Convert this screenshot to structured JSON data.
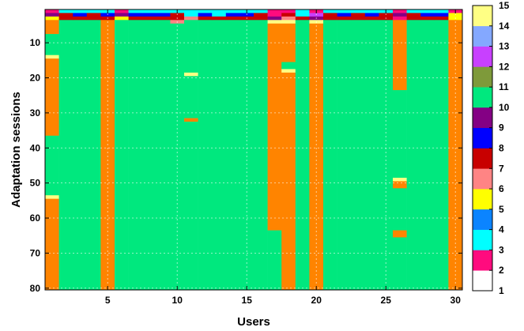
{
  "chart_data": {
    "type": "heatmap",
    "xlabel": "Users",
    "ylabel": "Adaptation sessions",
    "x_range": [
      1,
      30
    ],
    "y_range": [
      1,
      80
    ],
    "y_inverted": true,
    "x_ticks": [
      "5",
      "10",
      "15",
      "20",
      "25",
      "30"
    ],
    "y_ticks": [
      "10",
      "20",
      "30",
      "40",
      "50",
      "60",
      "70",
      "80"
    ],
    "grid": true,
    "colorbar": {
      "placement": "right",
      "range": [
        1,
        15
      ],
      "tick_labels": [
        "1",
        "2",
        "3",
        "4",
        "5",
        "6",
        "7",
        "8",
        "9",
        "10",
        "11",
        "12",
        "13",
        "14",
        "15"
      ],
      "levels": [
        {
          "value": 1,
          "color": "#ffffff"
        },
        {
          "value": 2,
          "color": "#ff0b7e"
        },
        {
          "value": 3,
          "color": "#00ffff"
        },
        {
          "value": 4,
          "color": "#0b84ff"
        },
        {
          "value": 5,
          "color": "#ffff00"
        },
        {
          "value": 6,
          "color": "#ff8484"
        },
        {
          "value": 7,
          "color": "#c80000"
        },
        {
          "value": 8,
          "color": "#0000ff"
        },
        {
          "value": 9,
          "color": "#840084"
        },
        {
          "value": 10,
          "color": "#00e87e"
        },
        {
          "value": 11,
          "color": "#7e9a3a"
        },
        {
          "value": 12,
          "color": "#c840ff"
        },
        {
          "value": 13,
          "color": "#84a8ff"
        },
        {
          "value": 14,
          "color": "#ffff84"
        },
        {
          "value": 15,
          "color": "#ff8400"
        }
      ]
    },
    "header_rows": [
      [
        2,
        3,
        3,
        3,
        3,
        2,
        3,
        3,
        3,
        3,
        3,
        3,
        3,
        3,
        3,
        3,
        2,
        2,
        3,
        2,
        3,
        3,
        3,
        3,
        3,
        2,
        3,
        3,
        3,
        2
      ],
      [
        9,
        7,
        8,
        7,
        8,
        9,
        8,
        8,
        8,
        7,
        3,
        8,
        3,
        8,
        8,
        7,
        2,
        7,
        3,
        12,
        7,
        8,
        7,
        8,
        7,
        9,
        7,
        8,
        8,
        5
      ],
      [
        5,
        7,
        7,
        7,
        7,
        5,
        7,
        7,
        7,
        7,
        6,
        7,
        7,
        7,
        7,
        7,
        9,
        6,
        7,
        9,
        7,
        7,
        7,
        7,
        7,
        2,
        7,
        7,
        7,
        5
      ]
    ],
    "column_defaults": [
      15,
      10,
      10,
      10,
      15,
      10,
      10,
      10,
      10,
      10,
      10,
      10,
      10,
      10,
      10,
      10,
      15,
      15,
      10,
      15,
      10,
      10,
      10,
      10,
      10,
      15,
      10,
      10,
      10,
      15
    ],
    "segments": [
      {
        "user": 1,
        "from": 4,
        "to": 7,
        "value": 15
      },
      {
        "user": 1,
        "from": 8,
        "to": 13,
        "value": 10
      },
      {
        "user": 1,
        "from": 14,
        "to": 14,
        "value": 14
      },
      {
        "user": 1,
        "from": 15,
        "to": 36,
        "value": 15
      },
      {
        "user": 1,
        "from": 37,
        "to": 53,
        "value": 10
      },
      {
        "user": 1,
        "from": 54,
        "to": 54,
        "value": 14
      },
      {
        "user": 10,
        "from": 4,
        "to": 4,
        "value": 6
      },
      {
        "user": 11,
        "from": 19,
        "to": 19,
        "value": 14
      },
      {
        "user": 11,
        "from": 32,
        "to": 32,
        "value": 15
      },
      {
        "user": 17,
        "from": 4,
        "to": 4,
        "value": 14
      },
      {
        "user": 17,
        "from": 64,
        "to": 80,
        "value": 10
      },
      {
        "user": 18,
        "from": 4,
        "to": 4,
        "value": 14
      },
      {
        "user": 18,
        "from": 16,
        "to": 17,
        "value": 10
      },
      {
        "user": 18,
        "from": 18,
        "to": 18,
        "value": 14
      },
      {
        "user": 20,
        "from": 4,
        "to": 4,
        "value": 14
      },
      {
        "user": 26,
        "from": 24,
        "to": 48,
        "value": 10
      },
      {
        "user": 26,
        "from": 49,
        "to": 49,
        "value": 14
      },
      {
        "user": 26,
        "from": 50,
        "to": 51,
        "value": 15
      },
      {
        "user": 26,
        "from": 52,
        "to": 63,
        "value": 10
      },
      {
        "user": 26,
        "from": 64,
        "to": 65,
        "value": 15
      },
      {
        "user": 26,
        "from": 66,
        "to": 80,
        "value": 10
      }
    ]
  }
}
